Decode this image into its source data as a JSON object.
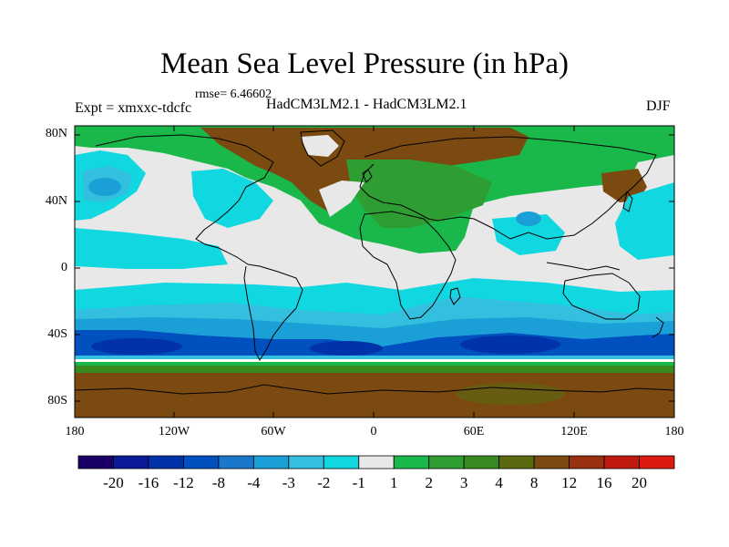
{
  "title": "Mean Sea Level Pressure (in hPa)",
  "rmse": "rmse= 6.46602",
  "expt": "Expt = xmxxc-tdcfc",
  "models": "HadCM3LM2.1 - HadCM3LM2.1",
  "season": "DJF",
  "lat_labels": [
    "80N",
    "40N",
    "0",
    "40S",
    "80S"
  ],
  "lon_labels": [
    "180",
    "120W",
    "60W",
    "0",
    "60E",
    "120E",
    "180"
  ],
  "colorbar": {
    "labels": [
      "-20",
      "-16",
      "-12",
      "-8",
      "-4",
      "-3",
      "-2",
      "-1",
      "1",
      "2",
      "3",
      "4",
      "8",
      "12",
      "16",
      "20"
    ],
    "colors": [
      "#1a0066",
      "#0a1a99",
      "#0033aa",
      "#0050c0",
      "#1a78cc",
      "#1aa0d6",
      "#33c0e0",
      "#11d8e0",
      "#e8e8e8",
      "#1ab84a",
      "#2e9e33",
      "#3a8a22",
      "#5a6a10",
      "#7a4a10",
      "#993010",
      "#c01a10",
      "#dd1a10"
    ]
  },
  "colors": {
    "land_outline": "#000000",
    "neutral": "#e8e8e8",
    "cyan": "#11d8e0",
    "light_blue": "#33c0e0",
    "mid_blue": "#1aa0d6",
    "blue": "#0050c0",
    "green": "#2e9e33",
    "bright_green": "#1ab84a",
    "brown": "#7a4a10",
    "dark_brown": "#993010"
  }
}
